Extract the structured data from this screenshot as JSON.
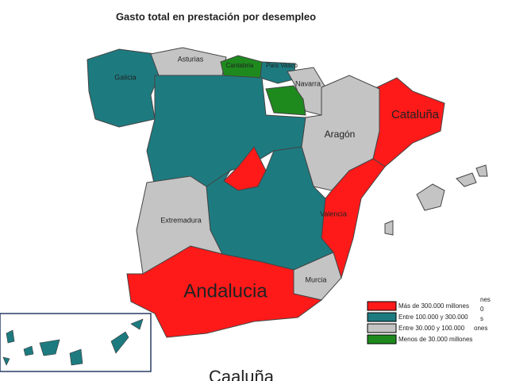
{
  "header": {
    "title": "Gasto total en prestación por desempleo"
  },
  "regions": [
    {
      "label": "Galicia"
    },
    {
      "label": "Asturias"
    },
    {
      "label": "Cantabria"
    },
    {
      "label": "País Vasco"
    },
    {
      "label": "Navarra"
    },
    {
      "label": "Cataluña"
    },
    {
      "label": "Aragón"
    },
    {
      "label": "Extremadura"
    },
    {
      "label": "Valencia"
    },
    {
      "label": "Andalucia"
    },
    {
      "label": "Murcia"
    }
  ],
  "legend": [
    {
      "label": "Más de 300.000 millones"
    },
    {
      "label": "Entre 100.000 y 300.000"
    },
    {
      "label": "Entre 30.000 y 100.000"
    },
    {
      "label": "Menos de 30.000 millones"
    }
  ],
  "behind": [
    "nes",
    "0",
    "s",
    "ones"
  ],
  "footer": "Caaluña"
}
